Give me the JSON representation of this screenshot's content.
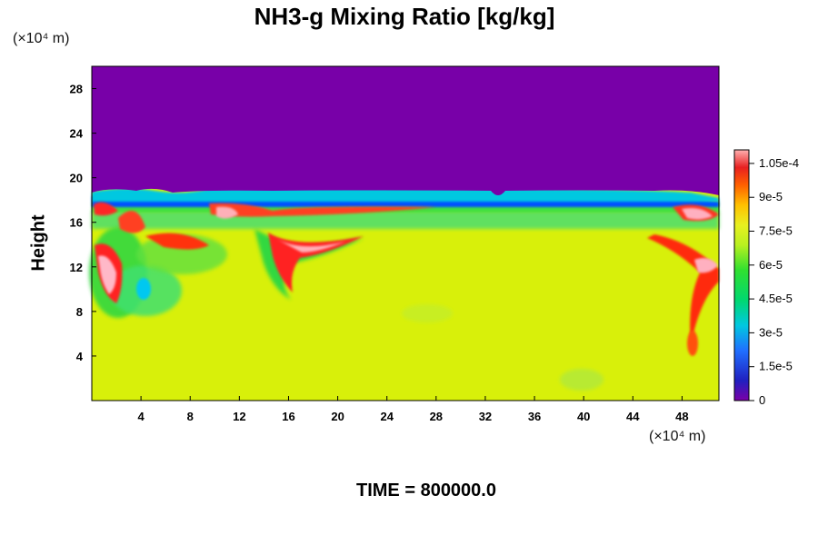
{
  "chart_data": {
    "type": "heatmap",
    "title": "NH3-g Mixing Ratio [kg/kg]",
    "ylabel": "Height",
    "xlabel": "",
    "x_unit": "(×10⁴ m)",
    "y_unit": "(×10⁴ m)",
    "footer": "TIME = 800000.0",
    "xlim": [
      0,
      51
    ],
    "ylim": [
      0,
      30
    ],
    "x_ticks": [
      4,
      8,
      12,
      16,
      20,
      24,
      28,
      32,
      36,
      40,
      44,
      48
    ],
    "y_ticks": [
      4,
      8,
      12,
      16,
      20,
      24,
      28
    ],
    "colorbar": {
      "range": [
        0,
        0.000111
      ],
      "tick_labels": [
        "0",
        "1.5e-5",
        "3e-5",
        "4.5e-5",
        "6e-5",
        "7.5e-5",
        "9e-5",
        "1.05e-4"
      ],
      "tick_values": [
        0,
        1.5e-05,
        3e-05,
        4.5e-05,
        6e-05,
        7.5e-05,
        9e-05,
        0.000105
      ]
    },
    "field_regions": {
      "upper_layer_value": 0,
      "upper_layer_bottom_height": 18.5,
      "mid_band_value": 6e-05,
      "mid_band_range": [
        15.5,
        18
      ],
      "lower_layer_value": 7.5e-05,
      "high_value_features": [
        {
          "x": 2,
          "y": 12,
          "value": 0.000111
        },
        {
          "x": 5,
          "y": 16.5,
          "value": 0.000105
        },
        {
          "x": 12,
          "y": 17,
          "value": 0.000105
        },
        {
          "x": 17,
          "y": 13,
          "value": 0.000105
        },
        {
          "x": 49,
          "y": 16.5,
          "value": 0.000111
        },
        {
          "x": 49,
          "y": 12.5,
          "value": 0.000105
        }
      ]
    }
  }
}
